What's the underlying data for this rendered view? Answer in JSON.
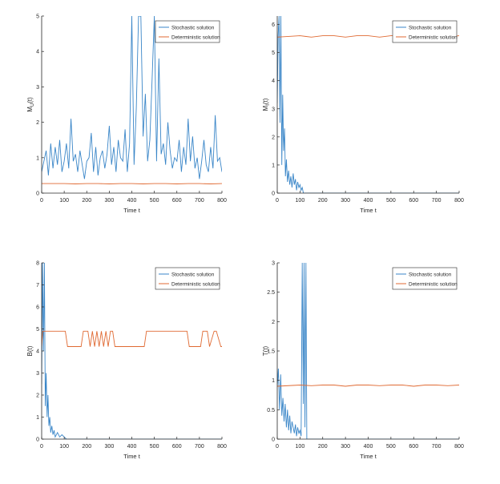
{
  "figure": {
    "colors": {
      "stochastic": "#3a86c8",
      "deterministic": "#e06a33",
      "axis": "#262626"
    }
  },
  "chart_data": [
    {
      "type": "line",
      "xlabel": "Time t",
      "ylabel": "M_U(t)",
      "ylabel_main": "M",
      "ylabel_sub": "U",
      "ylabel_tail": "(t)",
      "xlim": [
        0,
        800
      ],
      "ylim": [
        0,
        5
      ],
      "xticks": [
        0,
        100,
        200,
        300,
        400,
        500,
        600,
        700,
        800
      ],
      "yticks": [
        0,
        1,
        2,
        3,
        4,
        5
      ],
      "legend": {
        "position": "top-right",
        "entries": [
          "Stochastic solution",
          "Deterministic solution"
        ]
      },
      "series": [
        {
          "name": "Stochastic solution",
          "x": [
            0,
            10,
            20,
            30,
            40,
            50,
            60,
            70,
            80,
            90,
            100,
            110,
            120,
            130,
            140,
            150,
            160,
            170,
            180,
            190,
            200,
            210,
            220,
            230,
            240,
            250,
            260,
            270,
            280,
            290,
            300,
            310,
            320,
            330,
            340,
            350,
            360,
            370,
            380,
            390,
            400,
            410,
            420,
            430,
            440,
            450,
            460,
            470,
            480,
            490,
            500,
            510,
            520,
            530,
            540,
            550,
            560,
            570,
            580,
            590,
            600,
            610,
            620,
            630,
            640,
            650,
            660,
            670,
            680,
            690,
            700,
            710,
            720,
            730,
            740,
            750,
            760,
            770,
            780,
            790,
            800
          ],
          "y": [
            0.6,
            0.9,
            1.2,
            0.5,
            1.4,
            0.7,
            1.3,
            0.8,
            1.5,
            0.6,
            0.9,
            1.4,
            0.7,
            2.1,
            0.9,
            1.1,
            0.6,
            1.2,
            0.8,
            0.4,
            0.9,
            1.0,
            1.7,
            0.6,
            1.3,
            0.5,
            1.0,
            1.2,
            0.7,
            1.1,
            1.9,
            0.8,
            1.3,
            0.6,
            1.5,
            1.0,
            0.9,
            1.8,
            0.6,
            1.4,
            5.0,
            0.8,
            2.4,
            5.0,
            5.0,
            1.6,
            2.8,
            0.9,
            1.5,
            3.2,
            5.0,
            0.9,
            3.8,
            1.1,
            1.4,
            0.8,
            2.0,
            1.2,
            0.7,
            1.0,
            0.9,
            1.5,
            0.6,
            1.3,
            0.8,
            2.1,
            0.9,
            1.6,
            0.7,
            1.0,
            0.4,
            0.9,
            1.5,
            0.8,
            0.6,
            1.3,
            0.7,
            2.2,
            0.9,
            1.0,
            0.6
          ]
        },
        {
          "name": "Deterministic solution",
          "x": [
            0,
            100,
            150,
            200,
            250,
            300,
            350,
            400,
            450,
            500,
            550,
            600,
            650,
            700,
            750,
            800
          ],
          "y": [
            0.27,
            0.27,
            0.26,
            0.27,
            0.27,
            0.26,
            0.27,
            0.27,
            0.26,
            0.27,
            0.27,
            0.26,
            0.27,
            0.27,
            0.26,
            0.27
          ]
        }
      ]
    },
    {
      "type": "line",
      "xlabel": "Time t",
      "ylabel": "M_I(t)",
      "ylabel_main": "M",
      "ylabel_sub": "I",
      "ylabel_tail": "(t)",
      "xlim": [
        0,
        800
      ],
      "ylim": [
        0,
        6.3
      ],
      "xticks": [
        0,
        100,
        200,
        300,
        400,
        500,
        600,
        700,
        800
      ],
      "yticks": [
        0,
        1,
        2,
        3,
        4,
        5,
        6
      ],
      "legend": {
        "position": "top-right",
        "entries": [
          "Stochastic solution",
          "Deterministic solution"
        ]
      },
      "series": [
        {
          "name": "Stochastic solution",
          "x": [
            0,
            4,
            8,
            12,
            16,
            20,
            24,
            28,
            32,
            36,
            40,
            45,
            50,
            55,
            60,
            65,
            70,
            75,
            80,
            85,
            90,
            95,
            100,
            105,
            110,
            115,
            120,
            140,
            200,
            400,
            600,
            800
          ],
          "y": [
            3.2,
            5.6,
            6.3,
            2.5,
            6.3,
            1.0,
            3.5,
            1.5,
            2.3,
            0.6,
            1.2,
            0.4,
            0.8,
            0.3,
            0.6,
            0.2,
            0.7,
            0.3,
            0.5,
            0.1,
            0.4,
            0.2,
            0.3,
            0.1,
            0.2,
            0.0,
            0.0,
            0.0,
            0.0,
            0.0,
            0.0,
            0.0
          ]
        },
        {
          "name": "Deterministic solution",
          "x": [
            0,
            100,
            150,
            200,
            250,
            300,
            350,
            400,
            450,
            500,
            550,
            600,
            650,
            700,
            750,
            800
          ],
          "y": [
            5.55,
            5.6,
            5.55,
            5.6,
            5.6,
            5.55,
            5.6,
            5.6,
            5.55,
            5.6,
            5.6,
            5.55,
            5.6,
            5.6,
            5.55,
            5.6
          ]
        }
      ]
    },
    {
      "type": "line",
      "xlabel": "Time t",
      "ylabel": "B(t)",
      "ylabel_main": "B(t)",
      "ylabel_sub": "",
      "ylabel_tail": "",
      "xlim": [
        0,
        800
      ],
      "ylim": [
        0,
        8
      ],
      "xticks": [
        0,
        100,
        200,
        300,
        400,
        500,
        600,
        700,
        800
      ],
      "yticks": [
        0,
        1,
        2,
        3,
        4,
        5,
        6,
        7,
        8
      ],
      "legend": {
        "position": "top-right",
        "entries": [
          "Stochastic solution",
          "Deterministic solution"
        ]
      },
      "series": [
        {
          "name": "Stochastic solution",
          "x": [
            0,
            4,
            8,
            12,
            16,
            20,
            24,
            28,
            32,
            36,
            40,
            45,
            50,
            55,
            60,
            70,
            80,
            90,
            100,
            110,
            120,
            140,
            200,
            400,
            600,
            800
          ],
          "y": [
            2.5,
            8.0,
            4.0,
            8.0,
            1.5,
            3.0,
            1.0,
            2.0,
            0.6,
            1.0,
            0.3,
            0.6,
            0.2,
            0.4,
            0.1,
            0.3,
            0.1,
            0.2,
            0.1,
            0.0,
            0.0,
            0.0,
            0.0,
            0.0,
            0.0,
            0.0
          ]
        },
        {
          "name": "Deterministic solution",
          "x": [
            0,
            5,
            105,
            115,
            175,
            185,
            205,
            215,
            225,
            235,
            245,
            255,
            265,
            275,
            285,
            295,
            305,
            315,
            325,
            455,
            465,
            645,
            655,
            705,
            715,
            735,
            745,
            765,
            775,
            795,
            800
          ],
          "y": [
            4.2,
            4.9,
            4.9,
            4.2,
            4.2,
            4.9,
            4.9,
            4.2,
            4.9,
            4.2,
            4.9,
            4.2,
            4.9,
            4.2,
            4.9,
            4.2,
            4.9,
            4.9,
            4.2,
            4.2,
            4.9,
            4.9,
            4.2,
            4.2,
            4.9,
            4.9,
            4.2,
            4.9,
            4.9,
            4.2,
            4.2
          ]
        }
      ]
    },
    {
      "type": "line",
      "xlabel": "Time t",
      "ylabel": "T(t)",
      "ylabel_main": "T(t)",
      "ylabel_sub": "",
      "ylabel_tail": "",
      "xlim": [
        0,
        800
      ],
      "ylim": [
        0,
        3
      ],
      "xticks": [
        0,
        100,
        200,
        300,
        400,
        500,
        600,
        700,
        800
      ],
      "yticks": [
        0,
        0.5,
        1,
        1.5,
        2,
        2.5,
        3
      ],
      "legend": {
        "position": "top-right",
        "entries": [
          "Stochastic solution",
          "Deterministic solution"
        ]
      },
      "series": [
        {
          "name": "Stochastic solution",
          "x": [
            0,
            5,
            10,
            15,
            20,
            25,
            30,
            35,
            40,
            45,
            50,
            55,
            60,
            65,
            70,
            75,
            80,
            85,
            90,
            95,
            100,
            105,
            110,
            115,
            118,
            122,
            126,
            130,
            140,
            200,
            400,
            600,
            800
          ],
          "y": [
            0.9,
            1.2,
            0.5,
            1.1,
            0.4,
            0.7,
            0.3,
            0.6,
            0.2,
            0.5,
            0.15,
            0.4,
            0.1,
            0.3,
            0.2,
            0.1,
            0.25,
            0.05,
            0.2,
            0.1,
            0.15,
            0.05,
            3.0,
            0.6,
            3.0,
            0.2,
            3.0,
            0.0,
            0.0,
            0.0,
            0.0,
            0.0,
            0.0
          ]
        },
        {
          "name": "Deterministic solution",
          "x": [
            0,
            100,
            150,
            200,
            250,
            300,
            350,
            400,
            450,
            500,
            550,
            600,
            650,
            700,
            750,
            800
          ],
          "y": [
            0.9,
            0.92,
            0.91,
            0.92,
            0.92,
            0.9,
            0.92,
            0.92,
            0.91,
            0.92,
            0.92,
            0.9,
            0.92,
            0.92,
            0.91,
            0.92
          ]
        }
      ]
    }
  ]
}
